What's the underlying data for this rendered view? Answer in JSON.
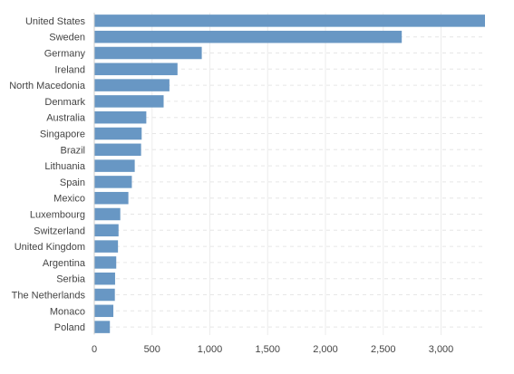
{
  "chart_data": {
    "type": "bar",
    "orientation": "horizontal",
    "categories": [
      "United States",
      "Sweden",
      "Germany",
      "Ireland",
      "North Macedonia",
      "Denmark",
      "Australia",
      "Singapore",
      "Brazil",
      "Lithuania",
      "Spain",
      "Mexico",
      "Luxembourg",
      "Switzerland",
      "United Kingdom",
      "Argentina",
      "Serbia",
      "The Netherlands",
      "Monaco",
      "Poland"
    ],
    "values": [
      3380,
      2660,
      930,
      720,
      650,
      600,
      450,
      410,
      405,
      350,
      325,
      295,
      225,
      210,
      205,
      190,
      180,
      178,
      165,
      135
    ],
    "xlim": [
      0,
      3380
    ],
    "xticks": [
      0,
      500,
      1000,
      1500,
      2000,
      2500,
      3000
    ],
    "xtick_labels": [
      "0",
      "500",
      "1,000",
      "1,500",
      "2,000",
      "2,500",
      "3,000"
    ],
    "xlabel": "",
    "ylabel": "",
    "title": "",
    "grid": true,
    "bar_color": "#6897c4"
  }
}
